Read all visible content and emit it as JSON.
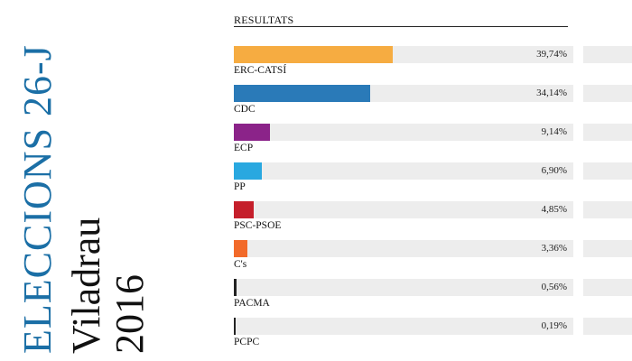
{
  "header": {
    "event_title": "ELECCIONS 26-J",
    "town": "Viladrau",
    "year": "2016"
  },
  "chart_data": {
    "type": "bar",
    "orientation": "horizontal",
    "title": "RESULTATS",
    "categories": [
      "ERC-CATSÍ",
      "CDC",
      "ECP",
      "PP",
      "PSC-PSOE",
      "C's",
      "PACMA",
      "PCPC"
    ],
    "values": [
      39.74,
      34.14,
      9.14,
      6.9,
      4.85,
      3.36,
      0.56,
      0.19
    ],
    "value_labels": [
      "39,74%",
      "34,14%",
      "9,14%",
      "6,90%",
      "4,85%",
      "3,36%",
      "0,56%",
      "0,19%"
    ],
    "colors": [
      "#f6ac41",
      "#2a7ab8",
      "#8b2389",
      "#29a8e0",
      "#c51f2b",
      "#f26a2a",
      "#222222",
      "#222222"
    ],
    "track_color": "#ededed",
    "xlim": [
      0,
      100
    ],
    "grid": false,
    "legend": "none"
  }
}
